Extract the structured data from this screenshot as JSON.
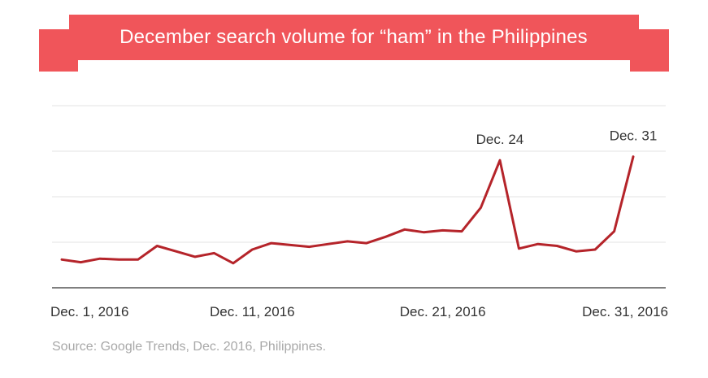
{
  "title": "December search volume for “ham” in the Philippines",
  "source": "Source: Google Trends, Dec. 2016, Philippines.",
  "colors": {
    "banner": "#f0555a",
    "banner_fold": "#b2262c",
    "line": "#b5242a",
    "axis": "#555555",
    "grid": "#e3e3e3",
    "text": "#333333",
    "source_text": "#a8a8a8"
  },
  "chart_data": {
    "type": "line",
    "title": "December search volume for “ham” in the Philippines",
    "x_tick_labels": [
      "Dec. 1, 2016",
      "Dec. 11, 2016",
      "Dec. 21, 2016",
      "Dec. 31, 2016"
    ],
    "x_ticks_day": [
      1,
      11,
      21,
      31
    ],
    "ylim": [
      0,
      100
    ],
    "grid": true,
    "y_tick_labels_shown": false,
    "series": [
      {
        "x": [
          1,
          2,
          3,
          4,
          5,
          6,
          7,
          8,
          9,
          10,
          11,
          12,
          13,
          14,
          15,
          16,
          17,
          18,
          19,
          20,
          21,
          22,
          23,
          24,
          25,
          26,
          27,
          28,
          29,
          30,
          31
        ],
        "values": [
          15.5,
          14,
          16,
          15.5,
          15.5,
          23,
          20,
          17,
          19,
          13.5,
          21,
          24.5,
          23.5,
          22.5,
          24,
          25.5,
          24.5,
          28,
          32,
          30.5,
          31.5,
          31,
          44,
          70,
          21.5,
          24,
          23,
          20,
          21,
          31,
          72
        ]
      }
    ],
    "annotations": [
      {
        "text": "Dec. 24",
        "x": 24
      },
      {
        "text": "Dec. 31",
        "x": 31
      }
    ]
  }
}
